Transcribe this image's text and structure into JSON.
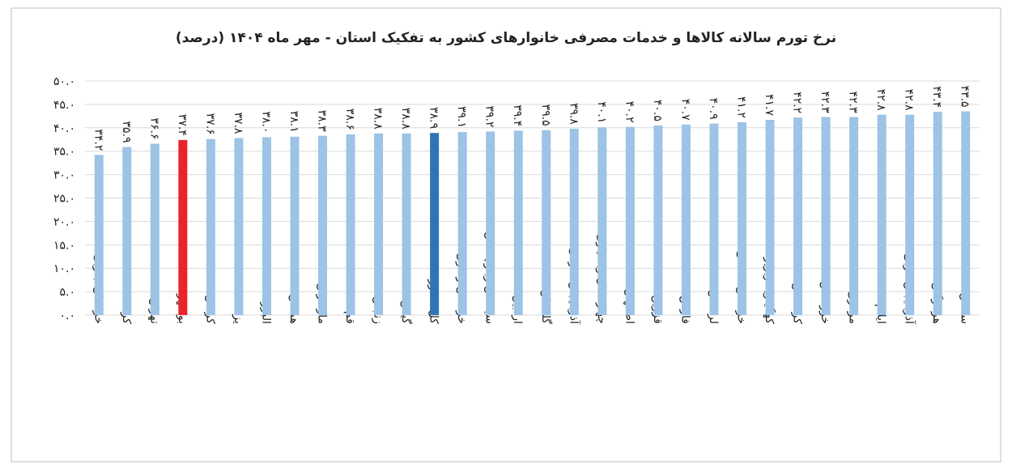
{
  "chart_data": {
    "type": "bar",
    "title": "نرخ تورم سالانه کالاها و خدمات مصرفی خانوارهای کشور به تفکیک استان - مهر ماه ۱۴۰۴ (درصد)",
    "categories": [
      "خراسان جنوبی",
      "کرمانشاه",
      "تهران",
      "بوشهر",
      "کرمان",
      "یزد",
      "البرز",
      "همدان",
      "مازندران",
      "قم",
      "زنجان",
      "گیلان",
      "کل کشور",
      "خراسان رضوی",
      "سیستان وبلوچستان",
      "اردبیل",
      "گلستان",
      "آذربایجان شرقی",
      "چهارمحال وبختیاری",
      "اصفهان",
      "قزوین",
      "فارس",
      "لرستان",
      "خراسان شمالی",
      "کهگیلویه وبویراحمد",
      "کردستان",
      "خوزستان",
      "مرکزی",
      "ایلام",
      "آذربایجان غربی",
      "هرمزگان",
      "سمنان"
    ],
    "values": [
      34.2,
      35.9,
      36.6,
      37.4,
      37.6,
      37.8,
      38.0,
      38.1,
      38.3,
      38.6,
      38.8,
      38.8,
      38.9,
      39.1,
      39.2,
      39.4,
      39.5,
      39.8,
      40.1,
      40.2,
      40.5,
      40.7,
      40.9,
      41.2,
      41.7,
      42.2,
      42.3,
      42.3,
      42.8,
      42.8,
      43.4,
      43.5
    ],
    "value_labels": [
      "۳۴.۲",
      "۳۵.۹",
      "۳۶.۶",
      "۳۷.۴",
      "۳۷.۶",
      "۳۷.۸",
      "۳۸.۰",
      "۳۸.۱",
      "۳۸.۳",
      "۳۸.۶",
      "۳۸.۸",
      "۳۸.۸",
      "۳۸.۹",
      "۳۹.۱",
      "۳۹.۲",
      "۳۹.۴",
      "۳۹.۵",
      "۳۹.۸",
      "۴۰.۱",
      "۴۰.۲",
      "۴۰.۵",
      "۴۰.۷",
      "۴۰.۹",
      "۴۱.۲",
      "۴۱.۷",
      "۴۲.۲",
      "۴۲.۳",
      "۴۲.۳",
      "۴۲.۸",
      "۴۲.۸",
      "۴۳.۴",
      "۴۳.۵"
    ],
    "colors": [
      "#9dc3e6",
      "#9dc3e6",
      "#9dc3e6",
      "#e8242c",
      "#9dc3e6",
      "#9dc3e6",
      "#9dc3e6",
      "#9dc3e6",
      "#9dc3e6",
      "#9dc3e6",
      "#9dc3e6",
      "#9dc3e6",
      "#2e75b6",
      "#9dc3e6",
      "#9dc3e6",
      "#9dc3e6",
      "#9dc3e6",
      "#9dc3e6",
      "#9dc3e6",
      "#9dc3e6",
      "#9dc3e6",
      "#9dc3e6",
      "#9dc3e6",
      "#9dc3e6",
      "#9dc3e6",
      "#9dc3e6",
      "#9dc3e6",
      "#9dc3e6",
      "#9dc3e6",
      "#9dc3e6",
      "#9dc3e6",
      "#9dc3e6"
    ],
    "ylim": [
      0,
      50
    ],
    "yticks": [
      {
        "value": 0,
        "label": "۰.۰"
      },
      {
        "value": 5,
        "label": "۵.۰"
      },
      {
        "value": 10,
        "label": "۱۰.۰"
      },
      {
        "value": 15,
        "label": "۱۵.۰"
      },
      {
        "value": 20,
        "label": "۲۰.۰"
      },
      {
        "value": 25,
        "label": "۲۵.۰"
      },
      {
        "value": 30,
        "label": "۳۰.۰"
      },
      {
        "value": 35,
        "label": "۳۵.۰"
      },
      {
        "value": 40,
        "label": "۴۰.۰"
      },
      {
        "value": 45,
        "label": "۴۵.۰"
      },
      {
        "value": 50,
        "label": "۵۰.۰"
      }
    ],
    "grid": true
  }
}
